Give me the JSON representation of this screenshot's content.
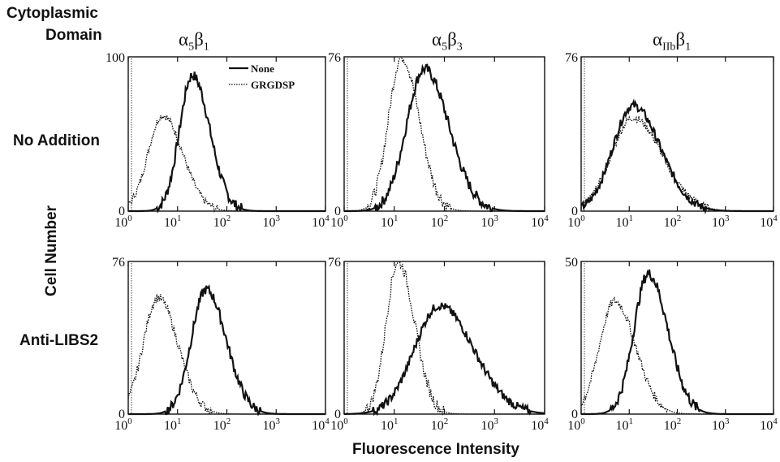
{
  "header": {
    "line1": "Cytoplasmic",
    "line2": "Domain"
  },
  "row_labels": [
    "No Addition",
    "Anti-LIBS2"
  ],
  "y_label": "Cell Number",
  "x_label": "Fluorescence Intensity",
  "legend": {
    "series1": "None",
    "series2": "GRGDSP"
  },
  "chart_data": [
    {
      "type": "line",
      "column_title": "α5β1",
      "row": "No Addition",
      "ylim": [
        0,
        100
      ],
      "xlim": [
        1,
        10000
      ],
      "xscale": "log",
      "series": [
        {
          "name": "None",
          "style": "solid",
          "peak_x": 20,
          "peak_y": 88,
          "width": 0.26
        },
        {
          "name": "GRGDSP",
          "style": "dotted",
          "peak_x": 5,
          "peak_y": 62,
          "width": 0.3
        }
      ]
    },
    {
      "type": "line",
      "column_title": "α5β3",
      "row": "No Addition",
      "ylim": [
        0,
        76
      ],
      "xlim": [
        1,
        10000
      ],
      "xscale": "log",
      "series": [
        {
          "name": "None",
          "style": "solid",
          "peak_x": 40,
          "peak_y": 70,
          "width": 0.36
        },
        {
          "name": "GRGDSP",
          "style": "dotted",
          "peak_x": 14,
          "peak_y": 76,
          "width": 0.26
        }
      ]
    },
    {
      "type": "line",
      "column_title": "αIIbβ1",
      "row": "No Addition",
      "ylim": [
        0,
        76
      ],
      "xlim": [
        1,
        10000
      ],
      "xscale": "log",
      "series": [
        {
          "name": "None",
          "style": "solid",
          "peak_x": 12,
          "peak_y": 52,
          "width": 0.42
        },
        {
          "name": "GRGDSP",
          "style": "dotted",
          "peak_x": 12,
          "peak_y": 46,
          "width": 0.45
        }
      ]
    },
    {
      "type": "line",
      "column_title": "α5β1",
      "row": "Anti-LIBS2",
      "ylim": [
        0,
        76
      ],
      "xlim": [
        1,
        10000
      ],
      "xscale": "log",
      "series": [
        {
          "name": "None",
          "style": "solid",
          "peak_x": 38,
          "peak_y": 62,
          "width": 0.3
        },
        {
          "name": "GRGDSP",
          "style": "dotted",
          "peak_x": 4,
          "peak_y": 58,
          "width": 0.3
        }
      ]
    },
    {
      "type": "line",
      "column_title": "α5β3",
      "row": "Anti-LIBS2",
      "ylim": [
        0,
        76
      ],
      "xlim": [
        1,
        10000
      ],
      "xscale": "log",
      "series": [
        {
          "name": "None",
          "style": "solid",
          "peak_x": 80,
          "peak_y": 54,
          "width": 0.5
        },
        {
          "name": "GRGDSP",
          "style": "dotted",
          "peak_x": 12,
          "peak_y": 76,
          "width": 0.24
        }
      ]
    },
    {
      "type": "line",
      "column_title": "αIIbβ1",
      "row": "Anti-LIBS2",
      "ylim": [
        0,
        50
      ],
      "xlim": [
        1,
        10000
      ],
      "xscale": "log",
      "series": [
        {
          "name": "None",
          "style": "solid",
          "peak_x": 25,
          "peak_y": 46,
          "width": 0.3
        },
        {
          "name": "GRGDSP",
          "style": "dotted",
          "peak_x": 5,
          "peak_y": 37,
          "width": 0.32
        }
      ]
    }
  ],
  "x_ticks": [
    "10",
    "10",
    "10",
    "10",
    "10"
  ],
  "x_tick_exponents": [
    "0",
    "1",
    "2",
    "3",
    "4"
  ]
}
